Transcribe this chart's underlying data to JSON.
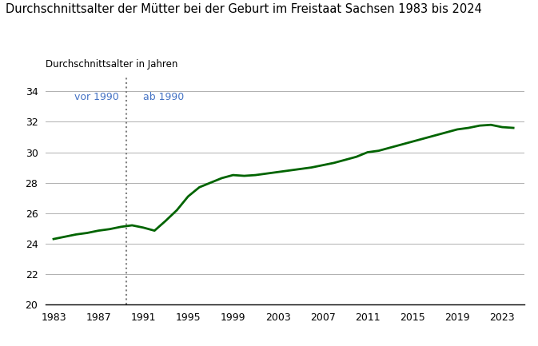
{
  "title": "Durchschnittsalter der Mütter bei der Geburt im Freistaat Sachsen 1983 bis 2024",
  "ylabel": "Durchschnittsalter in Jahren",
  "years": [
    1983,
    1984,
    1985,
    1986,
    1987,
    1988,
    1989,
    1990,
    1991,
    1992,
    1993,
    1994,
    1995,
    1996,
    1997,
    1998,
    1999,
    2000,
    2001,
    2002,
    2003,
    2004,
    2005,
    2006,
    2007,
    2008,
    2009,
    2010,
    2011,
    2012,
    2013,
    2014,
    2015,
    2016,
    2017,
    2018,
    2019,
    2020,
    2021,
    2022,
    2023,
    2024
  ],
  "values": [
    24.3,
    24.45,
    24.6,
    24.7,
    24.85,
    24.95,
    25.1,
    25.2,
    25.05,
    24.85,
    25.5,
    26.2,
    27.1,
    27.7,
    28.0,
    28.3,
    28.5,
    28.45,
    28.5,
    28.6,
    28.7,
    28.8,
    28.9,
    29.0,
    29.15,
    29.3,
    29.5,
    29.7,
    30.0,
    30.1,
    30.3,
    30.5,
    30.7,
    30.9,
    31.1,
    31.3,
    31.5,
    31.6,
    31.75,
    31.8,
    31.65,
    31.6
  ],
  "line_color": "#006400",
  "line_width": 2.0,
  "divider_year": 1989.5,
  "label_vor1990": "vor 1990",
  "label_ab1990": "ab 1990",
  "label_color": "#4472C4",
  "ylim": [
    20,
    35
  ],
  "yticks": [
    20,
    22,
    24,
    26,
    28,
    30,
    32,
    34
  ],
  "xticks": [
    1983,
    1987,
    1991,
    1995,
    1999,
    2003,
    2007,
    2011,
    2015,
    2019,
    2023
  ],
  "xlim_left": 1982.3,
  "xlim_right": 2025.0,
  "background_color": "#ffffff",
  "grid_color": "#b0b0b0",
  "title_fontsize": 10.5,
  "label_fontsize": 8.5,
  "tick_fontsize": 9,
  "annotation_fontsize": 9
}
